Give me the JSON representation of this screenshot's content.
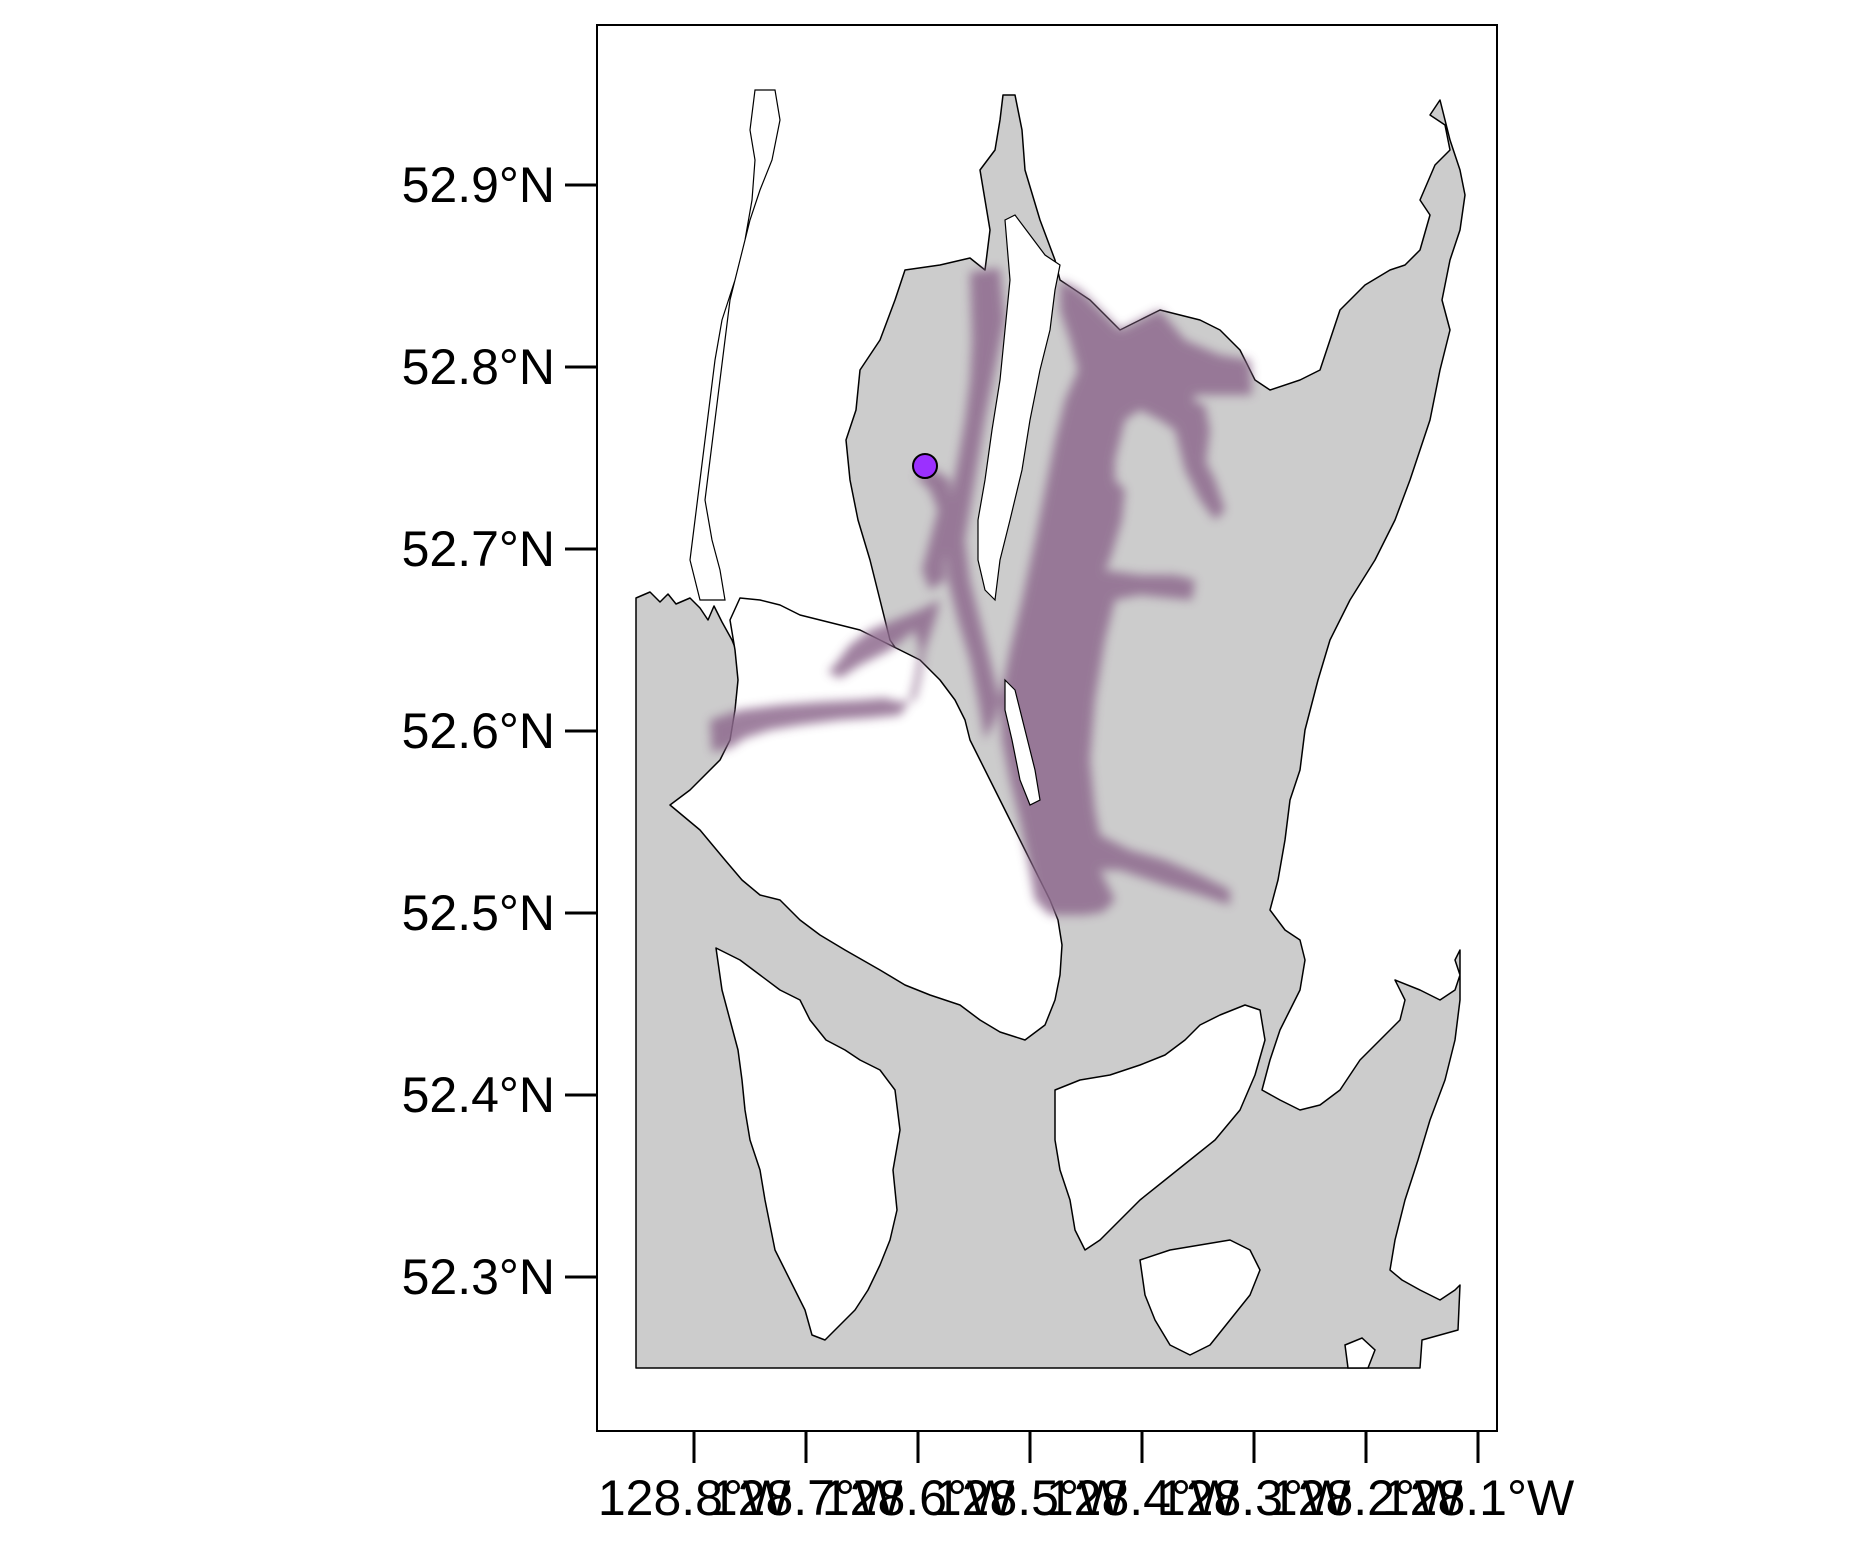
{
  "map": {
    "y_axis": {
      "labels": [
        "52.9°N",
        "52.8°N",
        "52.7°N",
        "52.6°N",
        "52.5°N",
        "52.4°N",
        "52.3°N"
      ]
    },
    "x_axis": {
      "labels": [
        "128.8°W",
        "128.7°W",
        "128.6°W",
        "128.5°W",
        "128.4°W",
        "128.3°W",
        "128.2°W",
        "128.1°W"
      ]
    },
    "colors": {
      "water": "#cccccc",
      "land": "#ffffff",
      "highlight": "#8e6a8e",
      "marker": "#9b30ff",
      "outline": "#000000"
    },
    "marker": {
      "lon": -128.59,
      "lat": 52.745
    }
  }
}
